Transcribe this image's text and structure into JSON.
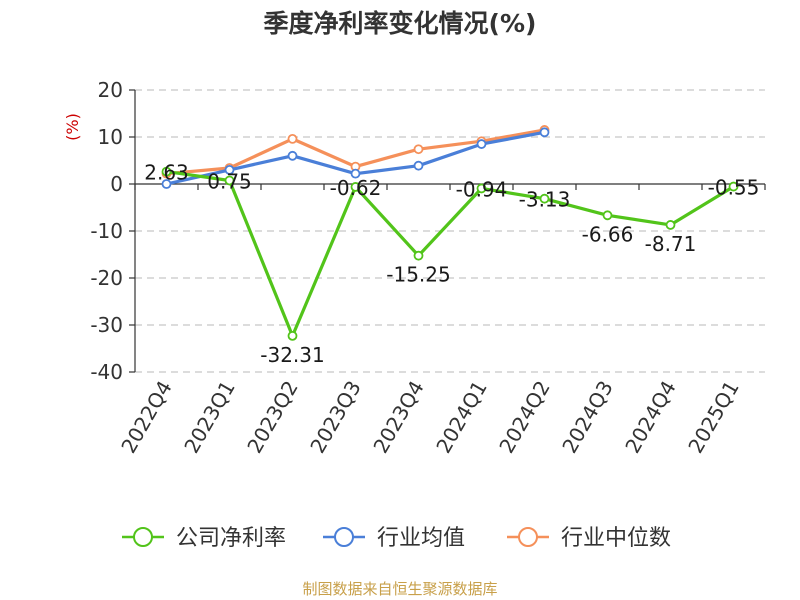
{
  "chart_data": {
    "type": "line",
    "title": "季度净利率变化情况(%)",
    "ylabel": "(%)",
    "xlabel": "",
    "ylim": [
      -40,
      20
    ],
    "yticks": [
      20,
      10,
      0,
      -10,
      -20,
      -30,
      -40
    ],
    "categories": [
      "2022Q4",
      "2023Q1",
      "2023Q2",
      "2023Q3",
      "2023Q4",
      "2024Q1",
      "2024Q2",
      "2024Q3",
      "2024Q4",
      "2025Q1"
    ],
    "grid": true,
    "legend_position": "bottom",
    "series": [
      {
        "name": "公司净利率",
        "color": "#52c41a",
        "values": [
          2.63,
          0.75,
          -32.31,
          -0.62,
          -15.25,
          -0.94,
          -3.13,
          -6.66,
          -8.71,
          -0.55
        ],
        "labels": [
          "2.63",
          "0.75",
          "-32.31",
          "-0.62",
          "-15.25",
          "-0.94",
          "-3.13",
          "-6.66",
          "-8.71",
          "-0.55"
        ]
      },
      {
        "name": "行业均值",
        "color": "#4a7fd8",
        "values": [
          0.0,
          3.0,
          6.0,
          2.2,
          3.9,
          8.5,
          11.0,
          null,
          null,
          null
        ]
      },
      {
        "name": "行业中位数",
        "color": "#f5905a",
        "values": [
          2.2,
          3.4,
          9.6,
          3.7,
          7.4,
          9.1,
          11.5,
          null,
          null,
          null
        ]
      }
    ]
  },
  "source_text": "制图数据来自恒生聚源数据库"
}
